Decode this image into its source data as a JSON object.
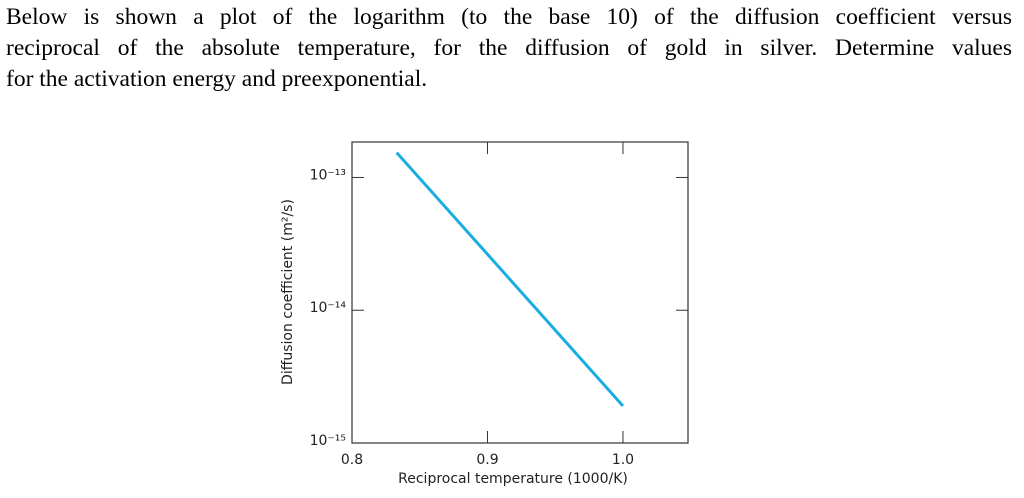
{
  "question_lines": [
    "Below is shown a plot of the logarithm (to the base 10) of the diffusion coefficient versus",
    "reciprocal of the absolute temperature, for the diffusion of gold in silver. Determine values",
    "for the activation energy and preexponential."
  ],
  "chart_data": {
    "type": "line",
    "x_label": "Reciprocal temperature (1000/K)",
    "y_label": "Diffusion coefficient (m²/s)",
    "x": [
      0.833,
      1.0
    ],
    "values": [
      1.54e-13,
      1.9e-15
    ],
    "color": "#1aaee0",
    "xlim": [
      0.8,
      1.048
    ],
    "xticks": [
      0.8,
      0.9,
      {
        "value": 1,
        "label": "1.0"
      }
    ],
    "ylim": [
      1e-15,
      1.85e-13
    ],
    "ylog": true,
    "yticks": [
      {
        "value": 1e-15,
        "label": "10⁻¹⁵"
      },
      {
        "value": 1e-14,
        "label": "10⁻¹⁴"
      },
      {
        "value": 1e-13,
        "label": "10⁻¹³"
      }
    ]
  }
}
